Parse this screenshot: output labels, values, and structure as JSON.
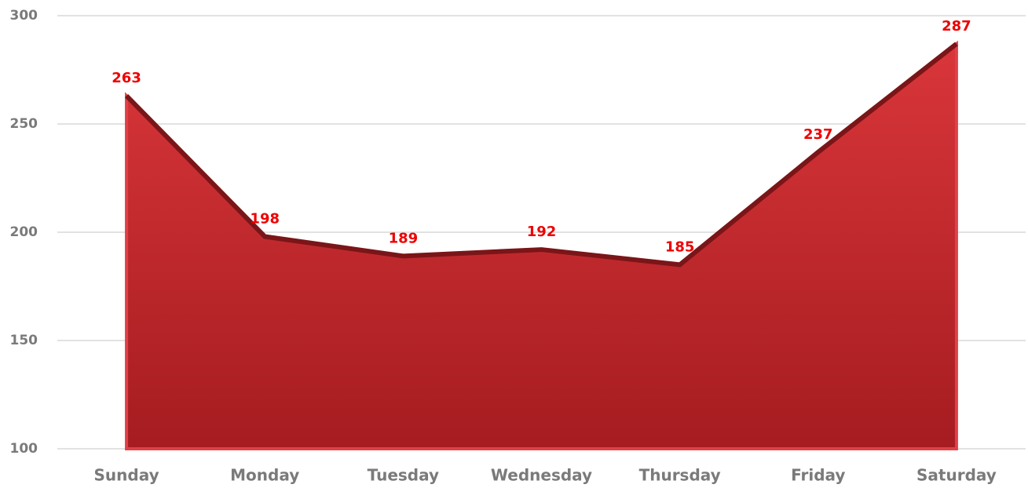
{
  "chart_data": {
    "type": "area",
    "categories": [
      "Sunday",
      "Monday",
      "Tuesday",
      "Wednesday",
      "Thursday",
      "Friday",
      "Saturday"
    ],
    "values": [
      263,
      198,
      189,
      192,
      185,
      237,
      287
    ],
    "color": "#c0272d",
    "ylim": [
      100,
      300
    ],
    "yticks": [
      100,
      150,
      200,
      250,
      300
    ],
    "grid": true
  }
}
